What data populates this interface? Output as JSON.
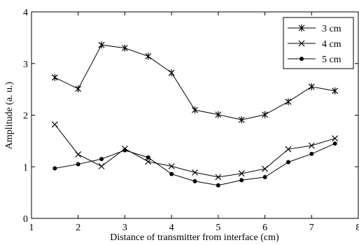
{
  "chart_data": {
    "type": "line",
    "xlabel": "Distance of transmitter from interface (cm)",
    "ylabel": "Amplitude (a. u.)",
    "xlim": [
      1,
      8
    ],
    "ylim": [
      0,
      4
    ],
    "x_ticks": [
      "1",
      "2",
      "3",
      "4",
      "5",
      "6",
      "7",
      "8"
    ],
    "y_ticks": [
      "0",
      "1",
      "2",
      "3",
      "4"
    ],
    "grid": false,
    "legend_position": "top-right",
    "x": [
      1.5,
      2,
      2.5,
      3,
      3.5,
      4,
      4.5,
      5,
      5.5,
      6,
      6.5,
      7,
      7.5
    ],
    "series": [
      {
        "name": "3 cm",
        "marker": "asterisk",
        "values": [
          2.73,
          2.51,
          3.36,
          3.3,
          3.14,
          2.82,
          2.1,
          2.01,
          1.91,
          2.01,
          2.26,
          2.55,
          2.47
        ]
      },
      {
        "name": "4 cm",
        "marker": "x",
        "values": [
          1.82,
          1.24,
          1.01,
          1.35,
          1.1,
          1.01,
          0.89,
          0.8,
          0.87,
          0.96,
          1.34,
          1.41,
          1.55
        ]
      },
      {
        "name": "5 cm",
        "marker": "dot",
        "values": [
          0.97,
          1.05,
          1.15,
          1.32,
          1.18,
          0.86,
          0.72,
          0.64,
          0.74,
          0.8,
          1.09,
          1.25,
          1.45
        ]
      }
    ]
  }
}
